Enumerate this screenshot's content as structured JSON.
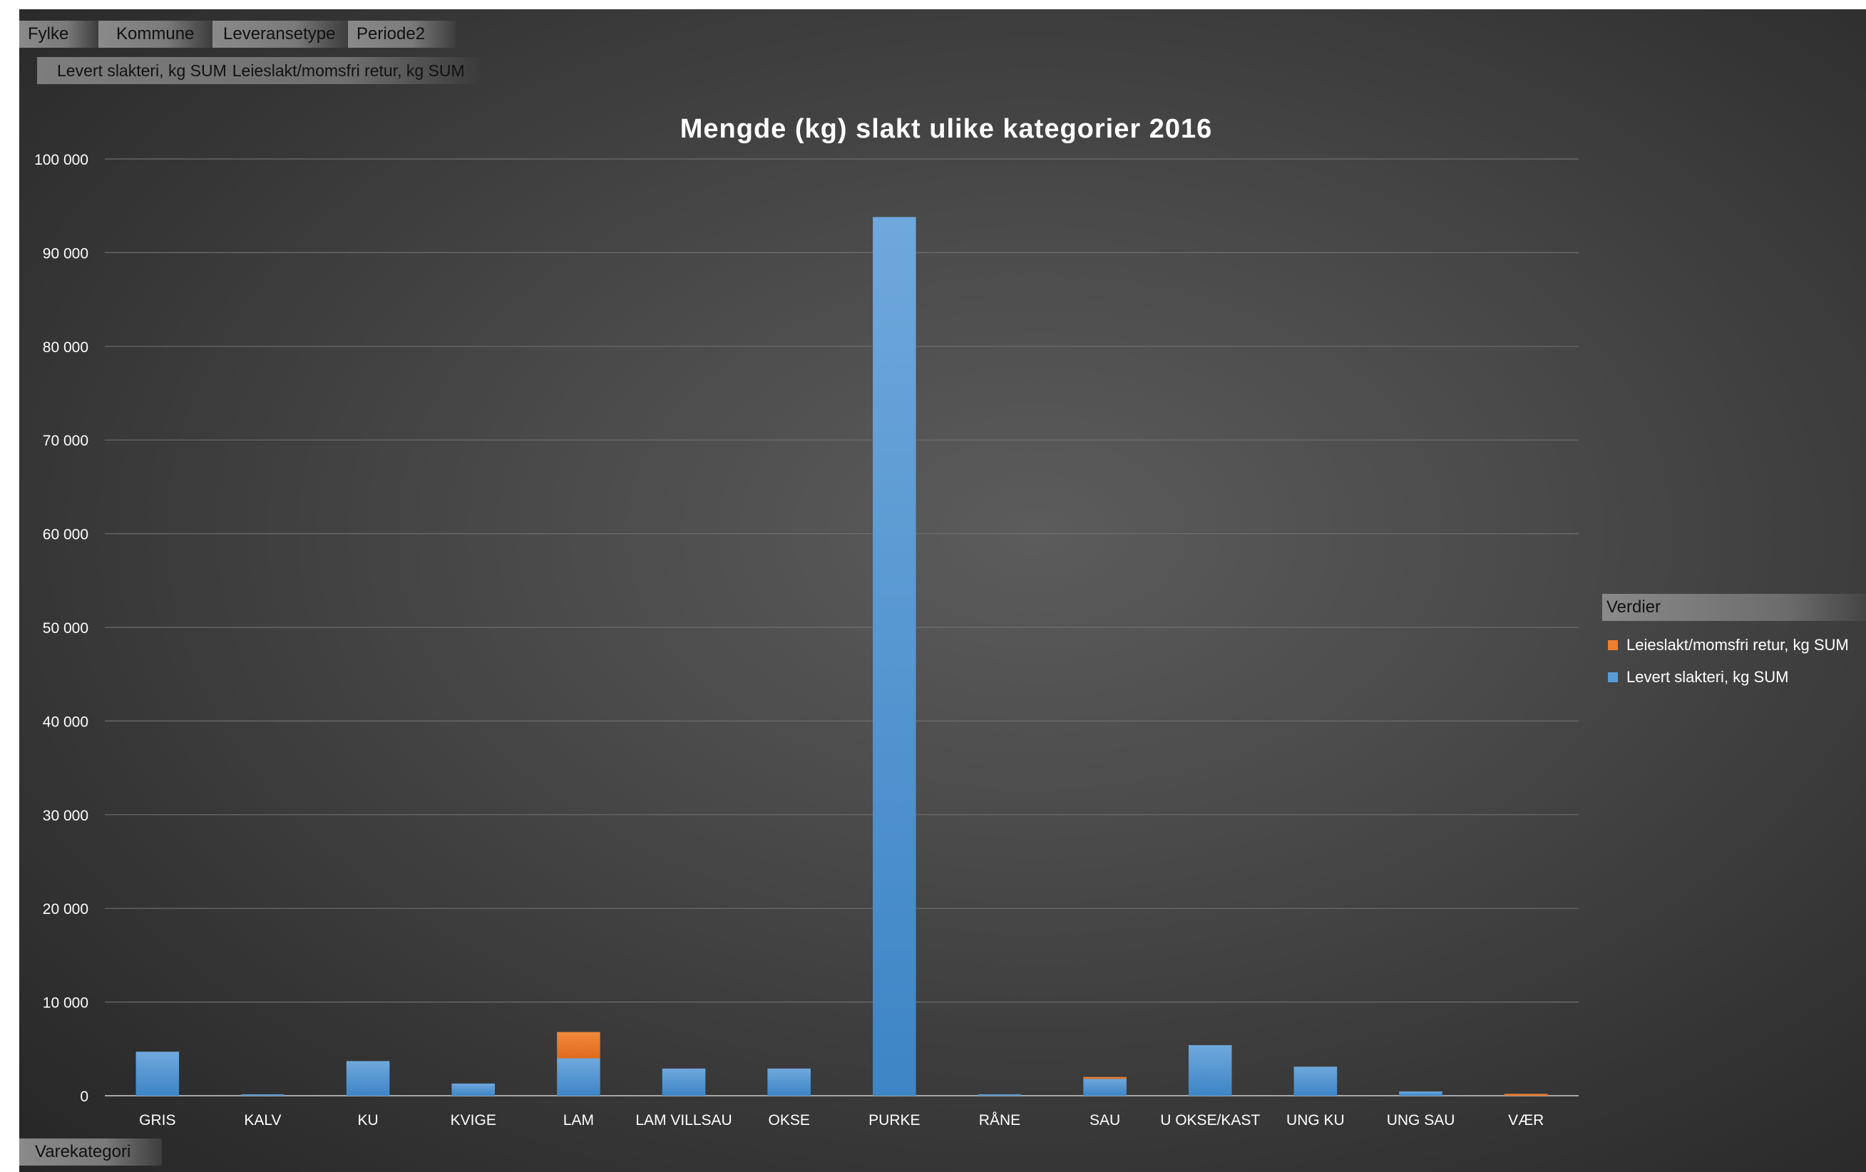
{
  "filters": {
    "fields": [
      "Fylke",
      "Kommune",
      "Leveransetype",
      "Periode2"
    ],
    "values": [
      "Levert slakteri, kg SUM",
      "Leieslakt/momsfri retur, kg SUM"
    ],
    "axis_field": "Varekategori"
  },
  "legend": {
    "title": "Verdier",
    "items": [
      {
        "label": "Leieslakt/momsfri retur, kg SUM",
        "color": "#ed7d31"
      },
      {
        "label": "Levert slakteri, kg SUM",
        "color": "#5b9bd5"
      }
    ]
  },
  "chart_data": {
    "type": "bar",
    "stacked": true,
    "title": "Mengde (kg) slakt ulike kategorier 2016",
    "xlabel": "",
    "ylabel": "",
    "ylim": [
      0,
      100000
    ],
    "yticks": [
      0,
      10000,
      20000,
      30000,
      40000,
      50000,
      60000,
      70000,
      80000,
      90000,
      100000
    ],
    "ytick_labels": [
      "0",
      "10 000",
      "20 000",
      "30 000",
      "40 000",
      "50 000",
      "60 000",
      "70 000",
      "80 000",
      "90 000",
      "100 000"
    ],
    "grid": true,
    "legend_position": "right",
    "categories": [
      "GRIS",
      "KALV",
      "KU",
      "KVIGE",
      "LAM",
      "LAM VILLSAU",
      "OKSE",
      "PURKE",
      "RÅNE",
      "SAU",
      "U OKSE/KAST",
      "UNG KU",
      "UNG SAU",
      "VÆR"
    ],
    "series": [
      {
        "name": "Levert slakteri, kg SUM",
        "color": "#5b9bd5",
        "values": [
          4700,
          150,
          3700,
          1300,
          4000,
          2900,
          2900,
          93800,
          150,
          1800,
          5400,
          3100,
          450,
          0
        ]
      },
      {
        "name": "Leieslakt/momsfri retur, kg SUM",
        "color": "#ed7d31",
        "values": [
          0,
          0,
          0,
          0,
          2800,
          0,
          0,
          0,
          0,
          200,
          0,
          0,
          0,
          200
        ]
      }
    ]
  }
}
